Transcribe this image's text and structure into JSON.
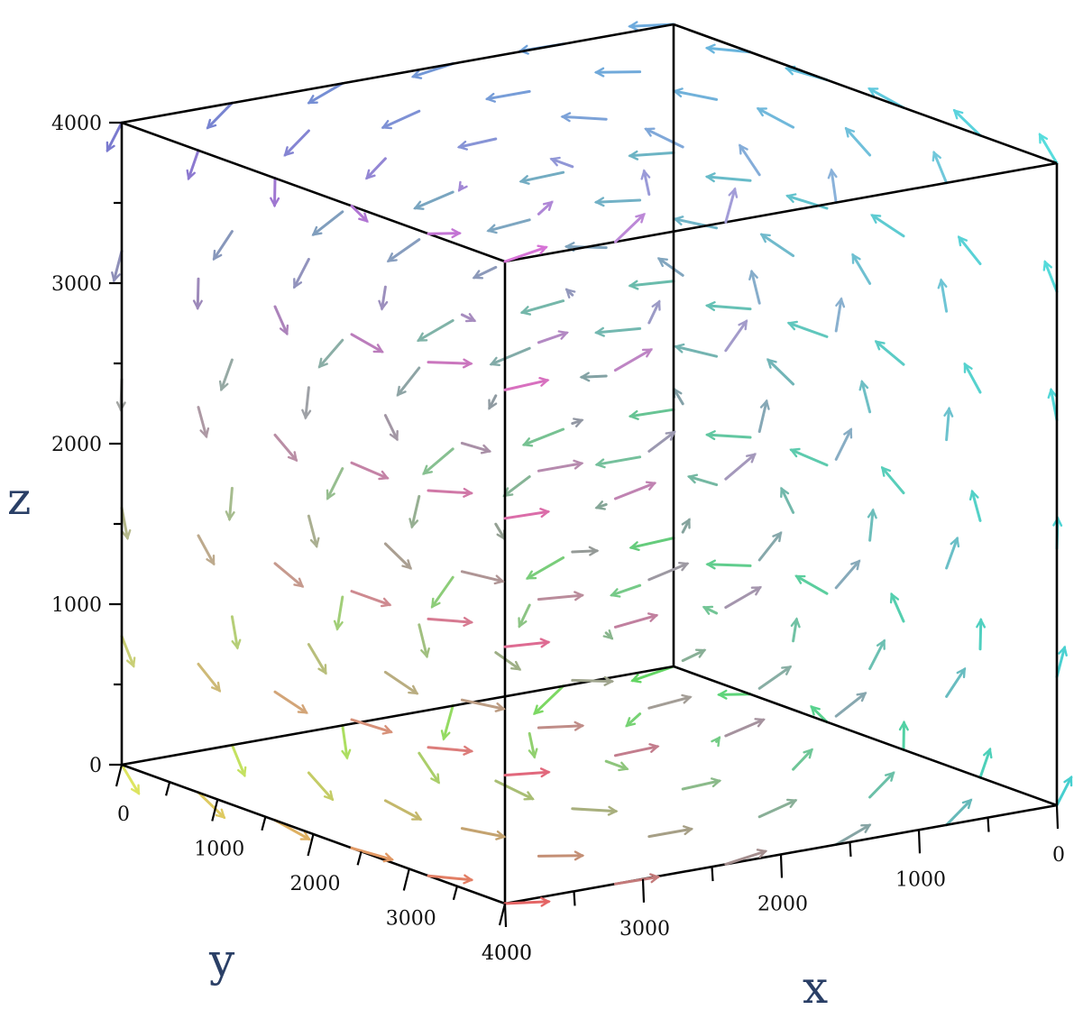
{
  "chart_data": {
    "type": "vector_field_3d",
    "title": "",
    "axes": {
      "x": {
        "label": "x",
        "range": [
          0,
          4000
        ],
        "ticks": [
          0,
          1000,
          2000,
          3000,
          4000
        ]
      },
      "y": {
        "label": "y",
        "range": [
          0,
          4000
        ],
        "ticks": [
          0,
          1000,
          2000,
          3000,
          4000
        ]
      },
      "z": {
        "label": "z",
        "range": [
          0,
          4000
        ],
        "ticks": [
          0,
          1000,
          2000,
          3000,
          4000
        ]
      }
    },
    "grid": false,
    "legend": "none",
    "field": {
      "description_units": "data units",
      "center": [
        2000,
        2000,
        2000
      ],
      "samples_per_axis": 6
    },
    "colors": {
      "corner_x0_y0_z0": "#4ecf4e",
      "corner_x4000_y0_z0": "#d8e04a",
      "corner_x0_y4000_z0": "#2ec8c8",
      "corner_x4000_y4000_z0": "#e05050",
      "corner_x0_y0_z4000": "#5aa0d8",
      "corner_x4000_y0_z4000": "#6868c8",
      "corner_x0_y4000_z4000": "#40d8d8",
      "corner_x4000_y4000_z4000": "#d060d0",
      "center": "#707070"
    }
  }
}
